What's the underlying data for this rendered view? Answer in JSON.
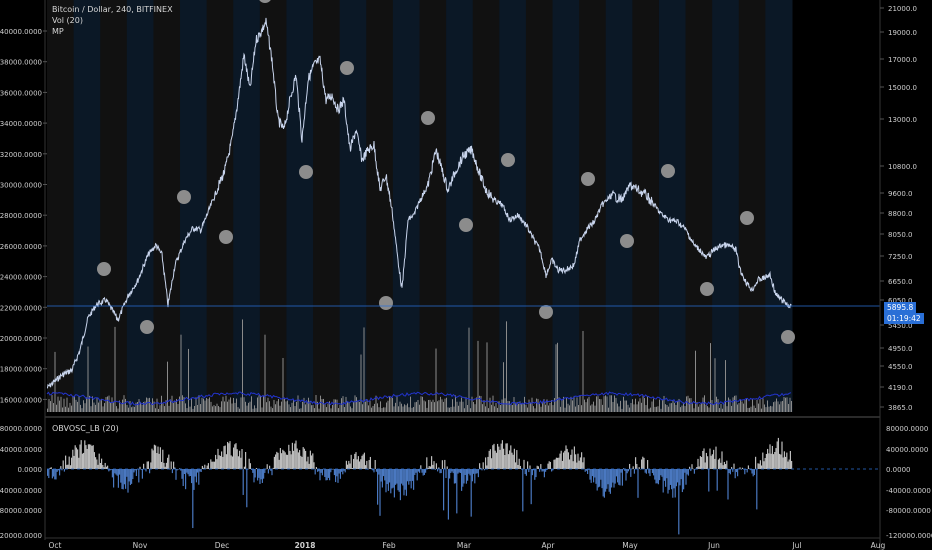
{
  "main_pane": {
    "title": "Bitcoin / Dollar, 240, BITFINEX",
    "indicators": [
      "Vol (20)",
      "MP"
    ],
    "left_ticks": [
      "40000.0000",
      "38000.0000",
      "36000.0000",
      "34000.0000",
      "32000.0000",
      "30000.0000",
      "28000.0000",
      "26000.0000",
      "24000.0000",
      "22000.0000",
      "20000.0000",
      "18000.0000",
      "16000.0000"
    ],
    "right_ticks": [
      "21000.0",
      "19000.0",
      "17000.0",
      "15000.0",
      "13000.0",
      "10800.0",
      "9600.0",
      "8800.0",
      "8050.0",
      "7250.0",
      "6650.0",
      "6050.0",
      "5450.0",
      "4950.0",
      "4550.0",
      "4190.0",
      "3865.0"
    ],
    "last_price": "5895.8",
    "countdown": "01:19:42"
  },
  "osc_pane": {
    "title": "OBVOSC_LB (20)",
    "left_ticks": [
      "80000.0000",
      "40000.0000",
      "0.0000",
      "-40000.0000",
      "-80000.0000",
      "-120000.0000"
    ],
    "right_ticks": [
      "80000.0000",
      "40000.0000",
      "0.0000",
      "-40000.0000",
      "-80000.0000",
      "-120000.0000"
    ]
  },
  "time_axis": [
    "Oct",
    "Nov",
    "Dec",
    "2018",
    "Feb",
    "Mar",
    "Apr",
    "May",
    "Jun",
    "Jul",
    "Aug"
  ],
  "colors": {
    "background": "#000000",
    "band_dark": "#111111",
    "band_blue": "#0b1826",
    "price_line": "#c8d4ec",
    "volume": "#8a8a8a",
    "volume_ma": "#2233cc",
    "osc_positive": "#bdbdbd",
    "osc_negative": "#4a78c0",
    "marker": "#8c8c8c",
    "accent": "#2a6fd6"
  },
  "chart_data": [
    {
      "type": "line",
      "title": "Bitcoin / Dollar, 240, BITFINEX",
      "x": [
        "Oct",
        "Nov",
        "Dec",
        "2018",
        "Feb",
        "Mar",
        "Apr",
        "May",
        "Jun",
        "Jul"
      ],
      "series": [
        {
          "name": "Bitcoin / Dollar",
          "values": [
            4200,
            6500,
            10800,
            19000,
            11500,
            10500,
            8500,
            9600,
            6700,
            5895.8
          ]
        }
      ],
      "ylim_left": [
        16000,
        40000
      ],
      "ylim_right": [
        3865,
        21000
      ]
    },
    {
      "type": "line",
      "title": "OBVOSC_LB (20)",
      "ylim": [
        -120000,
        80000
      ]
    }
  ]
}
